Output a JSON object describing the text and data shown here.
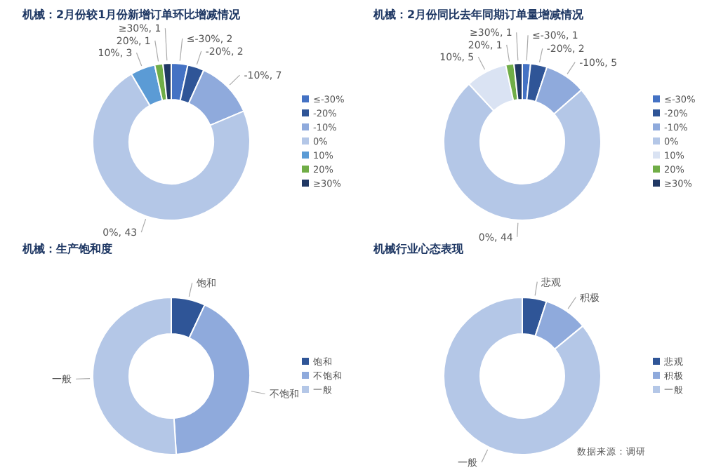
{
  "chart_data": [
    {
      "type": "donut",
      "title": "机械：2月份较1月份新增订单环比增减情况",
      "categories": [
        "≤-30%",
        "-20%",
        "-10%",
        "0%",
        "10%",
        "20%",
        "≥30%"
      ],
      "values": [
        2,
        2,
        7,
        43,
        3,
        1,
        1
      ],
      "colors": [
        "#4472c4",
        "#2f5597",
        "#8faadc",
        "#b4c7e7",
        "#5b9bd5",
        "#70ad47",
        "#203864"
      ],
      "value_labels": [
        ", 2",
        ", 2",
        ", 7",
        ", 43",
        ", 3",
        ", 1",
        ", 1"
      ],
      "legend": "right"
    },
    {
      "type": "donut",
      "title": "机械：2月份同比去年同期订单量增减情况",
      "categories": [
        "≤-30%",
        "-20%",
        "-10%",
        "0%",
        "10%",
        "20%",
        "≥30%"
      ],
      "values": [
        1,
        2,
        5,
        44,
        5,
        1,
        1
      ],
      "colors": [
        "#4472c4",
        "#2f5597",
        "#8faadc",
        "#b4c7e7",
        "#dae3f3",
        "#70ad47",
        "#203864"
      ],
      "value_labels": [
        ", 1",
        ", 2",
        ", 5",
        ", 44",
        ", 5",
        ", 1",
        ", 1"
      ],
      "legend": "right"
    },
    {
      "type": "donut",
      "title": "机械：生产饱和度",
      "categories": [
        "饱和",
        "不饱和",
        "一般"
      ],
      "values": [
        7,
        42,
        51
      ],
      "colors": [
        "#2f5597",
        "#8faadc",
        "#b4c7e7"
      ],
      "legend": "right"
    },
    {
      "type": "donut",
      "title": "机械行业心态表现",
      "categories": [
        "悲观",
        "积极",
        "一般"
      ],
      "values": [
        5,
        9,
        86
      ],
      "colors": [
        "#2f5597",
        "#8faadc",
        "#b4c7e7"
      ],
      "legend": "right",
      "annotations": [
        "数据来源：调研"
      ]
    }
  ]
}
